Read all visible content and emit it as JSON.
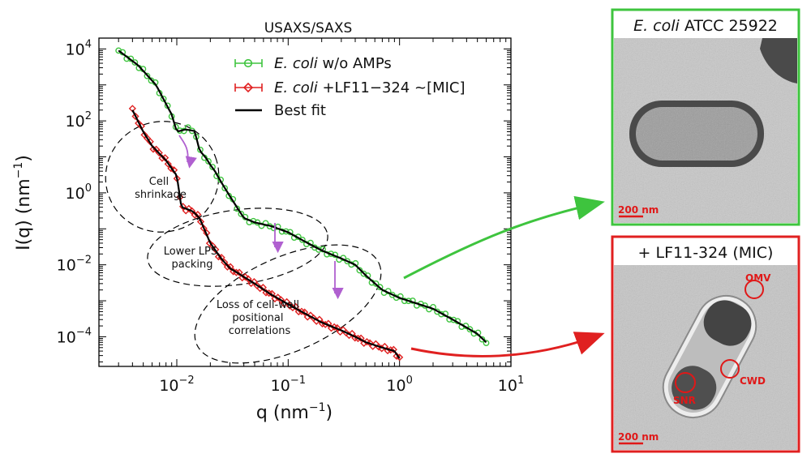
{
  "chart_data": {
    "type": "scatter",
    "title": "USAXS/SAXS",
    "xlabel_base": "q (nm",
    "xlabel_sup": "−1",
    "xlabel_end": ")",
    "ylabel_base": "I(q) (nm",
    "ylabel_sup": "−1",
    "ylabel_end": ")",
    "xscale": "log",
    "yscale": "log",
    "xlim": [
      0.002,
      10
    ],
    "ylim": [
      1.5e-05,
      20000
    ],
    "x_ticks": [
      {
        "value": 0.01,
        "base": "10",
        "exp": "−2"
      },
      {
        "value": 0.1,
        "base": "10",
        "exp": "−1"
      },
      {
        "value": 1,
        "base": "10",
        "exp": "0"
      },
      {
        "value": 10,
        "base": "10",
        "exp": "1"
      }
    ],
    "y_ticks": [
      {
        "value": 0.0001,
        "base": "10",
        "exp": "−4"
      },
      {
        "value": 0.01,
        "base": "10",
        "exp": "−2"
      },
      {
        "value": 1,
        "base": "10",
        "exp": "0"
      },
      {
        "value": 100,
        "base": "10",
        "exp": "2"
      },
      {
        "value": 10000,
        "base": "10",
        "exp": "4"
      }
    ],
    "legend_position": "top-right",
    "series": [
      {
        "name_italic": "E. coli",
        "name_rest": "  w/o AMPs",
        "color": "#3ec43e",
        "marker": "circle",
        "x": [
          0.003,
          0.0045,
          0.0065,
          0.009,
          0.01,
          0.012,
          0.0145,
          0.016,
          0.018,
          0.02,
          0.022,
          0.025,
          0.03,
          0.04,
          0.05,
          0.07,
          0.1,
          0.15,
          0.2,
          0.3,
          0.4,
          0.5,
          0.7,
          1.0,
          2.0,
          3.0,
          4.0,
          5.0,
          6.0
        ],
        "y": [
          9000,
          3500,
          1000,
          150,
          50,
          60,
          55,
          15,
          10,
          6,
          4,
          2,
          0.8,
          0.2,
          0.15,
          0.12,
          0.08,
          0.04,
          0.025,
          0.015,
          0.01,
          0.005,
          0.002,
          0.0012,
          0.0006,
          0.0003,
          0.00018,
          0.00012,
          7e-05
        ],
        "fit": [
          9000,
          3500,
          1000,
          150,
          50,
          58,
          52,
          15,
          10,
          6,
          4,
          2,
          0.8,
          0.2,
          0.15,
          0.12,
          0.08,
          0.04,
          0.025,
          0.015,
          0.01,
          0.005,
          0.002,
          0.0012,
          0.0006,
          0.0003,
          0.00018,
          0.00012,
          7e-05
        ]
      },
      {
        "name_italic": "E. coli",
        "name_rest": " +LF11−324 ~[MIC]",
        "color": "#e02020",
        "marker": "diamond",
        "x": [
          0.004,
          0.005,
          0.006,
          0.008,
          0.01,
          0.011,
          0.0125,
          0.014,
          0.016,
          0.02,
          0.025,
          0.03,
          0.035,
          0.05,
          0.07,
          0.1,
          0.15,
          0.2,
          0.3,
          0.4,
          0.5,
          0.7,
          0.9,
          1.0
        ],
        "y": [
          200,
          50,
          20,
          8,
          3,
          0.4,
          0.35,
          0.3,
          0.2,
          0.04,
          0.015,
          0.008,
          0.006,
          0.003,
          0.0015,
          0.0008,
          0.0004,
          0.00025,
          0.00015,
          0.0001,
          7e-05,
          5e-05,
          4e-05,
          2.5e-05
        ],
        "fit": [
          200,
          50,
          20,
          8,
          3,
          0.4,
          0.35,
          0.3,
          0.2,
          0.04,
          0.015,
          0.008,
          0.006,
          0.003,
          0.0015,
          0.0008,
          0.0004,
          0.00025,
          0.00015,
          0.0001,
          7e-05,
          5e-05,
          4e-05,
          2.5e-05
        ]
      }
    ],
    "best_fit_label": "Best fit",
    "annotations": [
      {
        "lines": [
          "Cell",
          "shrinkage"
        ]
      },
      {
        "lines": [
          "Lower LPS",
          "packing"
        ]
      },
      {
        "lines": [
          "Loss of cell-wall",
          "positional",
          "correlations"
        ]
      }
    ]
  },
  "tem_panels": [
    {
      "title_italic": "E. coli",
      "title_rest": " ATCC 25922",
      "scale_bar": "200 nm",
      "frame_color": "#3ec43e"
    },
    {
      "title": "+ LF11-324 (MIC)",
      "scale_bar": "200 nm",
      "frame_color": "#e02020",
      "labels": [
        "OMV",
        "CWD",
        "SNR"
      ]
    }
  ]
}
